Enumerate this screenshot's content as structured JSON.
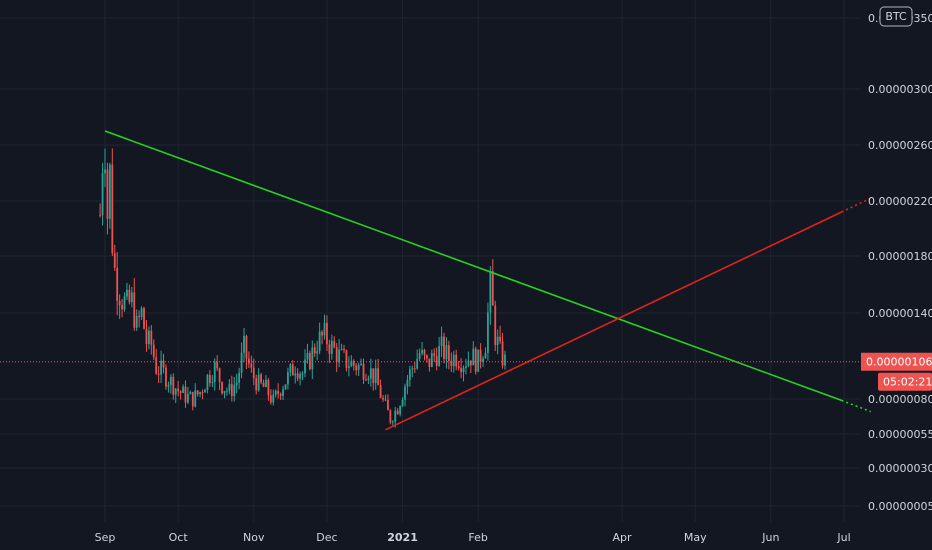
{
  "chart_data": {
    "type": "candlestick",
    "currency": "BTC",
    "grid": true,
    "y_ticks": [
      {
        "label": "0.00000005",
        "value": 5e-08
      },
      {
        "label": "0.00000030",
        "value": 3e-07
      },
      {
        "label": "0.00000055",
        "value": 5.5e-07
      },
      {
        "label": "0.00000080",
        "value": 8e-07
      },
      {
        "label": "0.00000140",
        "value": 1.4e-06
      },
      {
        "label": "0.00000180",
        "value": 1.8e-06
      },
      {
        "label": "0.00000220",
        "value": 2.2e-06
      },
      {
        "label": "0.00000260",
        "value": 2.6e-06
      },
      {
        "label": "0.00000300",
        "value": 3e-06
      },
      {
        "label": "0.00000350",
        "value": 3.5e-06
      }
    ],
    "x_ticks": [
      {
        "label": "Sep",
        "date": "2020-09-01"
      },
      {
        "label": "Oct",
        "date": "2020-10-01"
      },
      {
        "label": "Nov",
        "date": "2020-11-01"
      },
      {
        "label": "Dec",
        "date": "2020-12-01"
      },
      {
        "label": "2021",
        "date": "2021-01-01",
        "bold": true
      },
      {
        "label": "Feb",
        "date": "2021-02-01"
      },
      {
        "label": "Apr",
        "date": "2021-04-01"
      },
      {
        "label": "May",
        "date": "2021-05-01"
      },
      {
        "label": "Jun",
        "date": "2021-06-01"
      },
      {
        "label": "Jul",
        "date": "2021-07-01"
      }
    ],
    "last_price": {
      "label": "0.00000106",
      "value": 1.06e-06,
      "countdown": "05:02:21"
    },
    "series_close": [
      [
        "2020-08-30",
        2.1e-06
      ],
      [
        "2020-08-31",
        2.5e-06
      ],
      [
        "2020-09-01",
        2.6e-06
      ],
      [
        "2020-09-02",
        2.1e-06
      ],
      [
        "2020-09-03",
        2.4e-06
      ],
      [
        "2020-09-04",
        1.9e-06
      ],
      [
        "2020-09-05",
        1.7e-06
      ],
      [
        "2020-09-06",
        1.6e-06
      ],
      [
        "2020-09-08",
        1.5e-06
      ],
      [
        "2020-09-10",
        1.45e-06
      ],
      [
        "2020-09-12",
        1.48e-06
      ],
      [
        "2020-09-14",
        1.3e-06
      ],
      [
        "2020-09-16",
        1.4e-06
      ],
      [
        "2020-09-18",
        1.2e-06
      ],
      [
        "2020-09-20",
        1.18e-06
      ],
      [
        "2020-09-22",
        1.02e-06
      ],
      [
        "2020-09-25",
        9.8e-07
      ],
      [
        "2020-09-28",
        9.2e-07
      ],
      [
        "2020-10-01",
        8.6e-07
      ],
      [
        "2020-10-04",
        8.2e-07
      ],
      [
        "2020-10-07",
        8e-07
      ],
      [
        "2020-10-10",
        8.5e-07
      ],
      [
        "2020-10-13",
        9.5e-07
      ],
      [
        "2020-10-16",
        1.02e-06
      ],
      [
        "2020-10-19",
        9e-07
      ],
      [
        "2020-10-22",
        8.5e-07
      ],
      [
        "2020-10-25",
        9.2e-07
      ],
      [
        "2020-10-28",
        1.15e-06
      ],
      [
        "2020-10-31",
        9.8e-07
      ],
      [
        "2020-11-03",
        9e-07
      ],
      [
        "2020-11-06",
        8.7e-07
      ],
      [
        "2020-11-09",
        7.8e-07
      ],
      [
        "2020-11-12",
        8.8e-07
      ],
      [
        "2020-11-15",
        9.5e-07
      ],
      [
        "2020-11-18",
        1.04e-06
      ],
      [
        "2020-11-21",
        9.8e-07
      ],
      [
        "2020-11-24",
        1.08e-06
      ],
      [
        "2020-11-27",
        1.2e-06
      ],
      [
        "2020-11-30",
        1.24e-06
      ],
      [
        "2020-12-03",
        1.16e-06
      ],
      [
        "2020-12-06",
        1.1e-06
      ],
      [
        "2020-12-09",
        1.06e-06
      ],
      [
        "2020-12-12",
        1.04e-06
      ],
      [
        "2020-12-15",
        1.02e-06
      ],
      [
        "2020-12-18",
        1.01e-06
      ],
      [
        "2020-12-21",
        9.4e-07
      ],
      [
        "2020-12-24",
        7.8e-07
      ],
      [
        "2020-12-27",
        6.6e-07
      ],
      [
        "2020-12-30",
        7.4e-07
      ],
      [
        "2021-01-02",
        9e-07
      ],
      [
        "2021-01-05",
        1.02e-06
      ],
      [
        "2021-01-08",
        1.12e-06
      ],
      [
        "2021-01-11",
        1.04e-06
      ],
      [
        "2021-01-14",
        1.1e-06
      ],
      [
        "2021-01-17",
        1.15e-06
      ],
      [
        "2021-01-20",
        1.08e-06
      ],
      [
        "2021-01-23",
        1.1e-06
      ],
      [
        "2021-01-26",
        1.06e-06
      ],
      [
        "2021-01-29",
        1.1e-06
      ],
      [
        "2021-02-01",
        1.06e-06
      ],
      [
        "2021-02-04",
        1.2e-06
      ],
      [
        "2021-02-06",
        1.58e-06
      ],
      [
        "2021-02-08",
        1.25e-06
      ],
      [
        "2021-02-10",
        1.12e-06
      ],
      [
        "2021-02-12",
        1.06e-06
      ]
    ],
    "trendlines": [
      {
        "color": "#27d21f",
        "start": {
          "date": "2020-09-01",
          "value": 2.7e-06
        },
        "end": {
          "date": "2021-06-30",
          "value": 7.9e-07
        },
        "extend_to": {
          "date": "2021-07-12",
          "value": 7.1e-07
        }
      },
      {
        "color": "#e3221c",
        "start": {
          "date": "2020-12-25",
          "value": 5.8e-07
        },
        "end": {
          "date": "2021-06-30",
          "value": 2.12e-06
        },
        "extend_to": {
          "date": "2021-07-12",
          "value": 2.22e-06
        }
      }
    ]
  }
}
